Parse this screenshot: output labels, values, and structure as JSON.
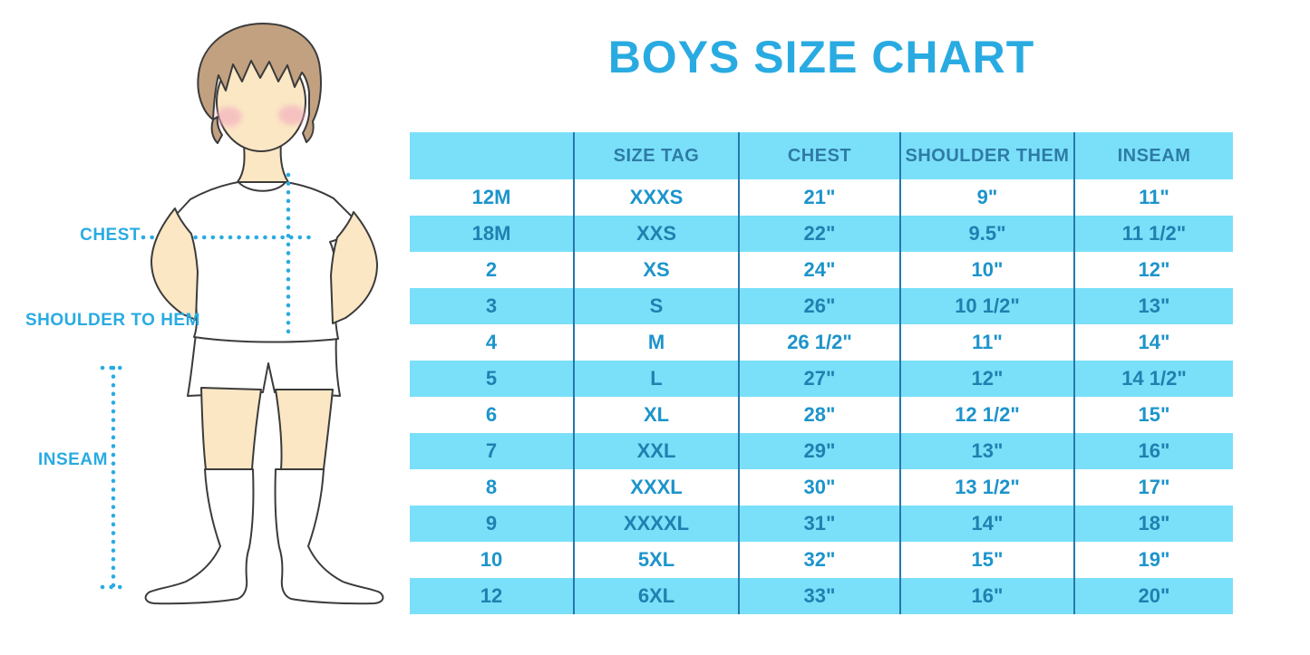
{
  "title": "BOYS SIZE CHART",
  "figure": {
    "labels": {
      "chest": "CHEST",
      "shoulder_to_hem": "SHOULDER TO HEM",
      "inseam": "INSEAM"
    }
  },
  "chart_data": {
    "type": "table",
    "title": "BOYS SIZE CHART",
    "columns": [
      "",
      "SIZE TAG",
      "CHEST",
      "SHOULDER THEM",
      "INSEAM"
    ],
    "rows": [
      [
        "12M",
        "XXXS",
        "21\"",
        "9\"",
        "11\""
      ],
      [
        "18M",
        "XXS",
        "22\"",
        "9.5\"",
        "11 1/2\""
      ],
      [
        "2",
        "XS",
        "24\"",
        "10\"",
        "12\""
      ],
      [
        "3",
        "S",
        "26\"",
        "10 1/2\"",
        "13\""
      ],
      [
        "4",
        "M",
        "26 1/2\"",
        "11\"",
        "14\""
      ],
      [
        "5",
        "L",
        "27\"",
        "12\"",
        "14 1/2\""
      ],
      [
        "6",
        "XL",
        "28\"",
        "12 1/2\"",
        "15\""
      ],
      [
        "7",
        "XXL",
        "29\"",
        "13\"",
        "16\""
      ],
      [
        "8",
        "XXXL",
        "30\"",
        "13 1/2\"",
        "17\""
      ],
      [
        "9",
        "XXXXL",
        "31\"",
        "14\"",
        "18\""
      ],
      [
        "10",
        "5XL",
        "32\"",
        "15\"",
        "19\""
      ],
      [
        "12",
        "6XL",
        "33\"",
        "16\"",
        "20\""
      ]
    ],
    "layout_hints": {
      "striped_rows": true,
      "stripe_order": "header cyan, then white/cyan alternating",
      "column_dividers": true
    }
  },
  "colors": {
    "accent": "#29ABE2",
    "band": "#7AE0F9",
    "divider": "#2478AC",
    "header-text": "#2E7BA6",
    "body-text": "#1C94CB",
    "band-text": "#1E81B0",
    "skin": "#FBE7C4",
    "hair": "#C2A181",
    "blush": "#F2A9BE",
    "outline": "#3B3B3B"
  }
}
